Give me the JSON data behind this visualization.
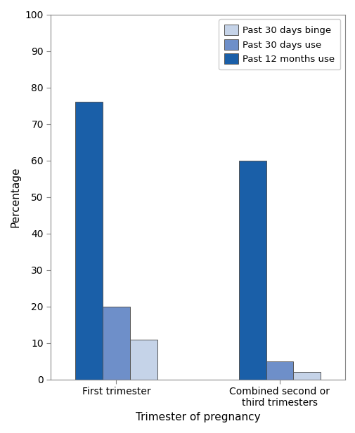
{
  "categories": [
    "First trimester",
    "Combined second or\nthird trimesters"
  ],
  "series": [
    {
      "label": "Past 12 months use",
      "values": [
        76,
        60
      ],
      "color": "#1a5fa8"
    },
    {
      "label": "Past 30 days use",
      "values": [
        20,
        5
      ],
      "color": "#6e8fc9"
    },
    {
      "label": "Past 30 days binge",
      "values": [
        11,
        2
      ],
      "color": "#c5d3e8"
    }
  ],
  "ylabel": "Percentage",
  "xlabel": "Trimester of pregnancy",
  "ylim": [
    0,
    100
  ],
  "yticks": [
    0,
    10,
    20,
    30,
    40,
    50,
    60,
    70,
    80,
    90,
    100
  ],
  "legend_labels": [
    "Past 30 days binge",
    "Past 30 days use",
    "Past 12 months use"
  ],
  "legend_colors": [
    "#c5d3e8",
    "#6e8fc9",
    "#1a5fa8"
  ],
  "bar_width": 0.25,
  "group_centers": [
    1.0,
    2.5
  ]
}
